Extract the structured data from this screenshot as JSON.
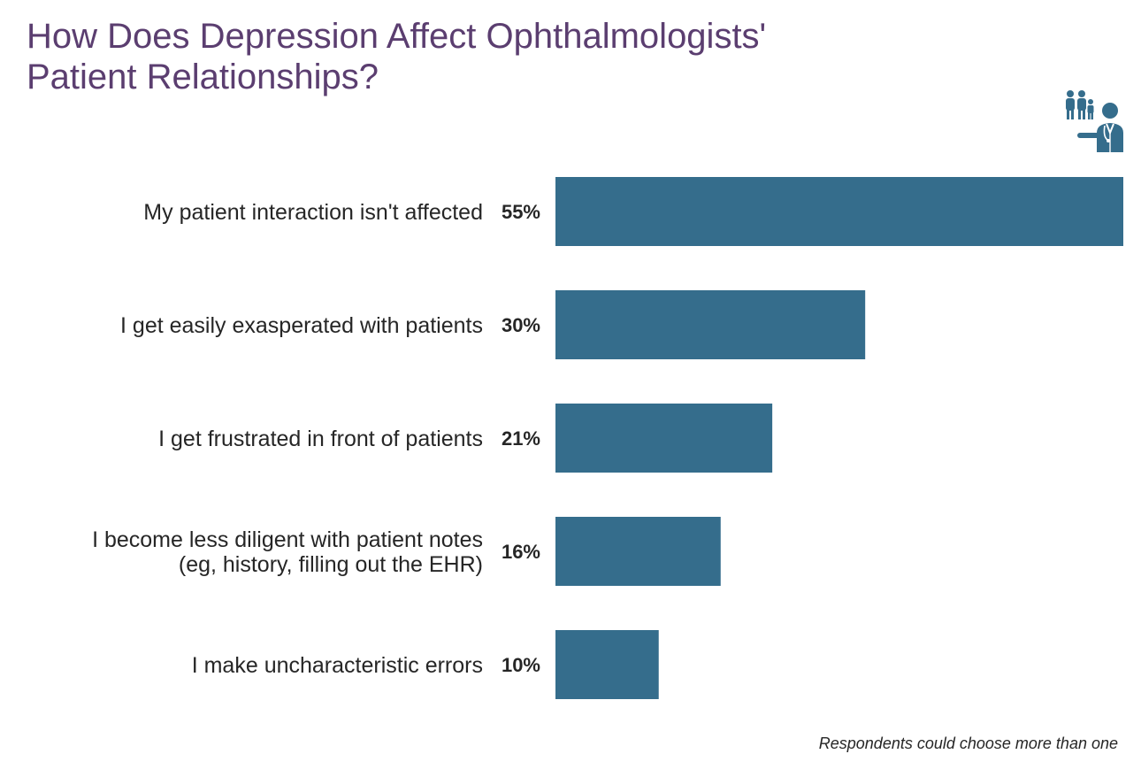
{
  "title_lines": [
    "How Does Depression Affect Ophthalmologists'",
    "Patient Relationships?"
  ],
  "footnote": "Respondents could choose more than one",
  "icon": "doctor-with-family-icon",
  "colors": {
    "title": "#5b3e70",
    "bar": "#356d8c",
    "icon": "#356d8c",
    "text": "#262626"
  },
  "chart_data": {
    "type": "bar",
    "orientation": "horizontal",
    "title": "How Does Depression Affect Ophthalmologists' Patient Relationships?",
    "categories": [
      [
        "My patient interaction isn't affected"
      ],
      [
        "I get easily exasperated with patients"
      ],
      [
        "I get frustrated in front of patients"
      ],
      [
        "I become less diligent with patient notes",
        "(eg, history, filling out the EHR)"
      ],
      [
        "I make uncharacteristic errors"
      ]
    ],
    "values": [
      55,
      30,
      21,
      16,
      10
    ],
    "value_labels": [
      "55%",
      "30%",
      "21%",
      "16%",
      "10%"
    ],
    "unit": "%",
    "xlim": [
      0,
      55
    ],
    "grid": false,
    "legend": "none"
  }
}
